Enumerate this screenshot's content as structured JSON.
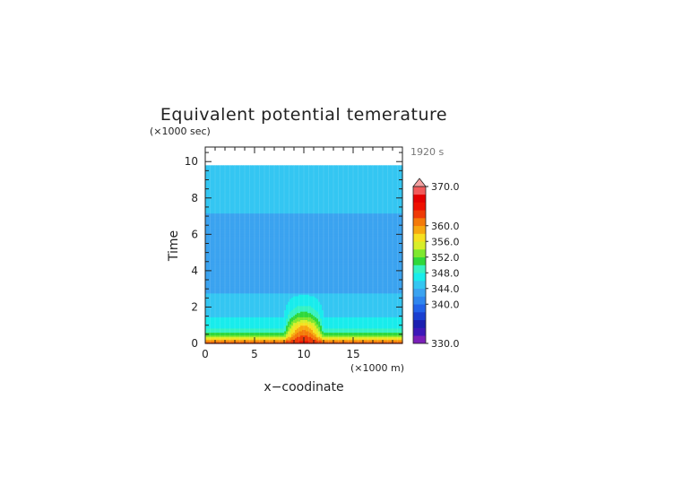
{
  "chart_data": {
    "type": "heatmap",
    "title": "Equivalent potential temerature",
    "ylabel": "Time",
    "y_units": "(×1000 sec)",
    "xlabel": "x−coodinate",
    "x_units": "(×1000 m)",
    "time_stamp": "1920 s",
    "xlim": [
      0,
      20
    ],
    "ylim": [
      0,
      10.8
    ],
    "x_ticks": [
      "0",
      "5",
      "10",
      "15"
    ],
    "y_ticks": [
      "0",
      "2",
      "4",
      "6",
      "8",
      "10"
    ],
    "colorbar": {
      "labels": [
        "370.0",
        "360.0",
        "356.0",
        "352.0",
        "348.0",
        "344.0",
        "340.0",
        "330.0"
      ],
      "levels": [
        330,
        332,
        334,
        336,
        338,
        340,
        342,
        344,
        346,
        348,
        350,
        352,
        354,
        356,
        358,
        360,
        362,
        364,
        366,
        368,
        370
      ],
      "colors": [
        "#7a1fb8",
        "#3c18b8",
        "#1b1fb0",
        "#1a3fd0",
        "#2262e8",
        "#2f86ee",
        "#3ba3f0",
        "#34c6f2",
        "#19ecec",
        "#36f2c2",
        "#2fd83a",
        "#7ee82e",
        "#d8ee2a",
        "#f6e020",
        "#f7a810",
        "#f47a0a",
        "#ef3a06",
        "#ee1000",
        "#e40000",
        "#f25a5a"
      ],
      "extend_color": "#f4a0a0"
    },
    "field": {
      "description_levels": "equivalent potential temperature (K) per time band",
      "bands": [
        {
          "t_from": 9.8,
          "t_to": 10.8,
          "value": null
        },
        {
          "t_from": 7.2,
          "t_to": 9.8,
          "value": 345
        },
        {
          "t_from": 2.8,
          "t_to": 7.2,
          "value": 343
        },
        {
          "t_from": 0,
          "t_to": 2.8,
          "value": "surface_gradient"
        }
      ],
      "surface_profile": {
        "peak_x": 10,
        "peak_halfwidth": 2.0,
        "edge_values": [
          [
            0.0,
            364
          ],
          [
            0.25,
            358
          ],
          [
            0.45,
            352
          ],
          [
            0.7,
            349
          ],
          [
            1.0,
            347
          ],
          [
            1.5,
            346
          ],
          [
            2.8,
            345
          ]
        ],
        "peak_values": [
          [
            0.0,
            365
          ],
          [
            0.5,
            362
          ],
          [
            1.0,
            358
          ],
          [
            1.3,
            354
          ],
          [
            1.6,
            351
          ],
          [
            1.9,
            349
          ],
          [
            2.3,
            347
          ],
          [
            2.7,
            346
          ],
          [
            3.1,
            345
          ]
        ]
      }
    }
  }
}
